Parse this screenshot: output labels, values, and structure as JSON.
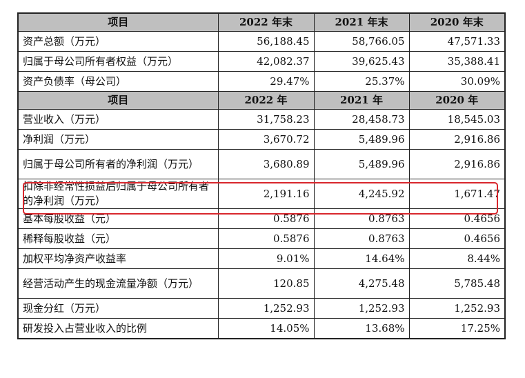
{
  "table": {
    "section1": {
      "headers": [
        "项目",
        "2022 年末",
        "2021 年末",
        "2020 年末"
      ],
      "rows": [
        {
          "label": "资产总额（万元）",
          "v": [
            "56,188.45",
            "58,766.05",
            "47,571.33"
          ]
        },
        {
          "label": "归属于母公司所有者权益（万元）",
          "v": [
            "42,082.37",
            "39,625.43",
            "35,388.41"
          ]
        },
        {
          "label": "资产负债率（母公司）",
          "v": [
            "29.47%",
            "25.37%",
            "30.09%"
          ]
        }
      ]
    },
    "section2": {
      "headers": [
        "项目",
        "2022 年",
        "2021 年",
        "2020 年"
      ],
      "rows": [
        {
          "label": "营业收入（万元）",
          "v": [
            "31,758.23",
            "28,458.73",
            "18,545.03"
          ]
        },
        {
          "label": "净利润（万元）",
          "v": [
            "3,670.72",
            "5,489.96",
            "2,916.86"
          ]
        },
        {
          "label": "归属于母公司所有者的净利润（万元）",
          "v": [
            "3,680.89",
            "5,489.96",
            "2,916.86"
          ]
        },
        {
          "label": "扣除非经常性损益后归属于母公司所有者的净利润（万元）",
          "v": [
            "2,191.16",
            "4,245.92",
            "1,671.47"
          ]
        },
        {
          "label": "基本每股收益（元）",
          "v": [
            "0.5876",
            "0.8763",
            "0.4656"
          ]
        },
        {
          "label": "稀释每股收益（元）",
          "v": [
            "0.5876",
            "0.8763",
            "0.4656"
          ]
        },
        {
          "label": "加权平均净资产收益率",
          "v": [
            "9.01%",
            "14.64%",
            "8.44%"
          ]
        },
        {
          "label": "经营活动产生的现金流量净额（万元）",
          "v": [
            "120.85",
            "4,275.48",
            "5,785.48"
          ]
        },
        {
          "label": "现金分红（万元）",
          "v": [
            "1,252.93",
            "1,252.93",
            "1,252.93"
          ]
        },
        {
          "label": "研发投入占营业收入的比例",
          "v": [
            "14.05%",
            "13.68%",
            "17.25%"
          ]
        }
      ]
    },
    "highlight_color": "#d8262c",
    "header_bg": "#bfbfbf"
  }
}
